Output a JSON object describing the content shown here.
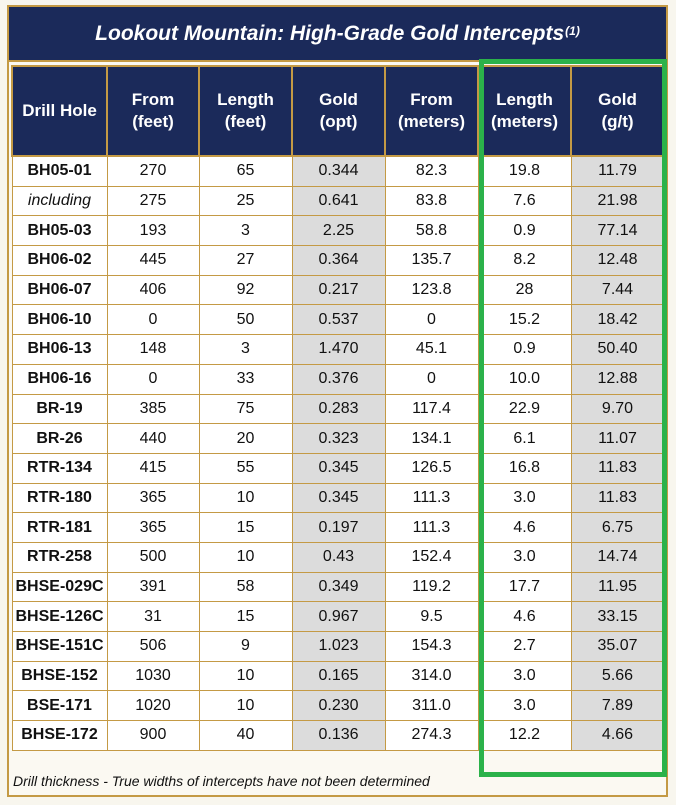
{
  "title": {
    "text": "Lookout Mountain:  High-Grade Gold Intercepts",
    "footnote_ref": "(1)"
  },
  "headers": [
    [
      "Drill Hole"
    ],
    [
      "From",
      "(feet)"
    ],
    [
      "Length",
      "(feet)"
    ],
    [
      "Gold",
      "(opt)"
    ],
    [
      "From",
      "(meters)"
    ],
    [
      "Length",
      "(meters)"
    ],
    [
      "Gold",
      "(g/t)"
    ]
  ],
  "rows": [
    [
      "BH05-01",
      "270",
      "65",
      "0.344",
      "82.3",
      "19.8",
      "11.79"
    ],
    [
      "including",
      "275",
      "25",
      "0.641",
      "83.8",
      "7.6",
      "21.98"
    ],
    [
      "BH05-03",
      "193",
      "3",
      "2.25",
      "58.8",
      "0.9",
      "77.14"
    ],
    [
      "BH06-02",
      "445",
      "27",
      "0.364",
      "135.7",
      "8.2",
      "12.48"
    ],
    [
      "BH06-07",
      "406",
      "92",
      "0.217",
      "123.8",
      "28",
      "7.44"
    ],
    [
      "BH06-10",
      "0",
      "50",
      "0.537",
      "0",
      "15.2",
      "18.42"
    ],
    [
      "BH06-13",
      "148",
      "3",
      "1.470",
      "45.1",
      "0.9",
      "50.40"
    ],
    [
      "BH06-16",
      "0",
      "33",
      "0.376",
      "0",
      "10.0",
      "12.88"
    ],
    [
      "BR-19",
      "385",
      "75",
      "0.283",
      "117.4",
      "22.9",
      "9.70"
    ],
    [
      "BR-26",
      "440",
      "20",
      "0.323",
      "134.1",
      "6.1",
      "11.07"
    ],
    [
      "RTR-134",
      "415",
      "55",
      "0.345",
      "126.5",
      "16.8",
      "11.83"
    ],
    [
      "RTR-180",
      "365",
      "10",
      "0.345",
      "111.3",
      "3.0",
      "11.83"
    ],
    [
      "RTR-181",
      "365",
      "15",
      "0.197",
      "111.3",
      "4.6",
      "6.75"
    ],
    [
      "RTR-258",
      "500",
      "10",
      "0.43",
      "152.4",
      "3.0",
      "14.74"
    ],
    [
      "BHSE-029C",
      "391",
      "58",
      "0.349",
      "119.2",
      "17.7",
      "11.95"
    ],
    [
      "BHSE-126C",
      "31",
      "15",
      "0.967",
      "9.5",
      "4.6",
      "33.15"
    ],
    [
      "BHSE-151C",
      "506",
      "9",
      "1.023",
      "154.3",
      "2.7",
      "35.07"
    ],
    [
      "BHSE-152",
      "1030",
      "10",
      "0.165",
      "314.0",
      "3.0",
      "5.66"
    ],
    [
      "BSE-171",
      "1020",
      "10",
      "0.230",
      "311.0",
      "3.0",
      "7.89"
    ],
    [
      "BHSE-172",
      "900",
      "40",
      "0.136",
      "274.3",
      "12.2",
      "4.66"
    ]
  ],
  "italic_rows": [
    "including"
  ],
  "footnote": "Drill thickness - True widths of intercepts have not been determined",
  "colors": {
    "header_bg": "#1b2a5a",
    "border_gold": "#c49a45",
    "shaded_cell": "#dcdcdc",
    "highlight_green": "#2bb24a"
  }
}
